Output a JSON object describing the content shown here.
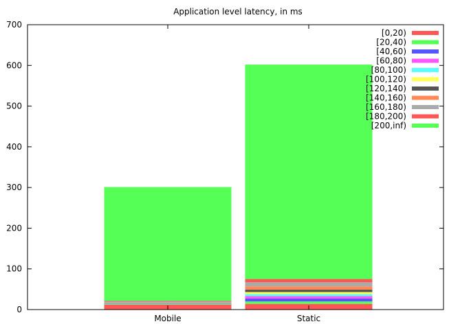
{
  "chart_data": {
    "type": "bar",
    "stacked": true,
    "title": "Application level latency, in ms",
    "xlabel": "",
    "ylabel": "",
    "categories": [
      "Mobile",
      "Static"
    ],
    "ylim": [
      0,
      700
    ],
    "yticks": [
      0,
      100,
      200,
      300,
      400,
      500,
      600,
      700
    ],
    "grid": false,
    "legend_position": "top-right",
    "series": [
      {
        "name": "[0,20)",
        "color": "#ff5555",
        "values": [
          12,
          14
        ]
      },
      {
        "name": "[20,40)",
        "color": "#55ff55",
        "values": [
          2,
          6
        ]
      },
      {
        "name": "[40,60)",
        "color": "#5555ff",
        "values": [
          1,
          7
        ]
      },
      {
        "name": "[60,80)",
        "color": "#ff55ff",
        "values": [
          1,
          6
        ]
      },
      {
        "name": "[80,100)",
        "color": "#55ffff",
        "values": [
          0.5,
          5
        ]
      },
      {
        "name": "[100,120)",
        "color": "#ffff55",
        "values": [
          0.5,
          5
        ]
      },
      {
        "name": "[120,140)",
        "color": "#555555",
        "values": [
          0.5,
          6
        ]
      },
      {
        "name": "[140,160)",
        "color": "#ff8855",
        "values": [
          0.5,
          8
        ]
      },
      {
        "name": "[160,180)",
        "color": "#aaaaaa",
        "values": [
          3,
          10
        ]
      },
      {
        "name": "[180,200)",
        "color": "#ff5555",
        "values": [
          1,
          8
        ]
      },
      {
        "name": "[200,inf)",
        "color": "#55ff55",
        "values": [
          279,
          527
        ]
      }
    ]
  }
}
